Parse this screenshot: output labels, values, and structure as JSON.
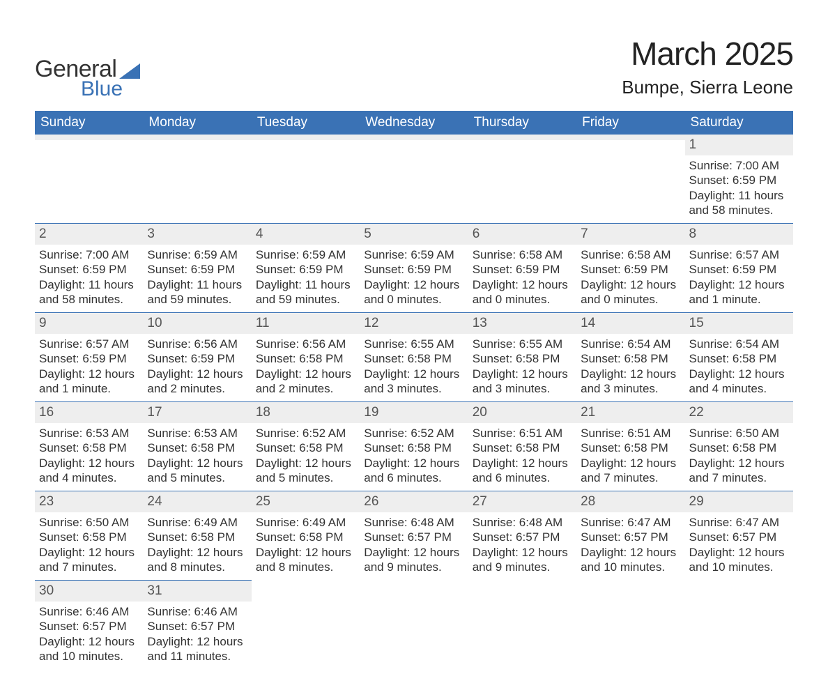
{
  "header": {
    "logo_text1": "General",
    "logo_text2": "Blue",
    "month_title": "March 2025",
    "location": "Bumpe, Sierra Leone"
  },
  "colors": {
    "header_bg": "#3a72b5",
    "header_text": "#ffffff",
    "daynum_bg": "#eeeeee",
    "row_border": "#3a72b5",
    "body_text": "#333333",
    "page_bg": "#ffffff"
  },
  "typography": {
    "month_title_fontsize": 46,
    "location_fontsize": 26,
    "dayheader_fontsize": 19,
    "daynum_fontsize": 19,
    "body_fontsize": 17
  },
  "day_headers": [
    "Sunday",
    "Monday",
    "Tuesday",
    "Wednesday",
    "Thursday",
    "Friday",
    "Saturday"
  ],
  "weeks": [
    [
      {
        "day": "",
        "sunrise": "",
        "sunset": "",
        "daylight1": "",
        "daylight2": ""
      },
      {
        "day": "",
        "sunrise": "",
        "sunset": "",
        "daylight1": "",
        "daylight2": ""
      },
      {
        "day": "",
        "sunrise": "",
        "sunset": "",
        "daylight1": "",
        "daylight2": ""
      },
      {
        "day": "",
        "sunrise": "",
        "sunset": "",
        "daylight1": "",
        "daylight2": ""
      },
      {
        "day": "",
        "sunrise": "",
        "sunset": "",
        "daylight1": "",
        "daylight2": ""
      },
      {
        "day": "",
        "sunrise": "",
        "sunset": "",
        "daylight1": "",
        "daylight2": ""
      },
      {
        "day": "1",
        "sunrise": "Sunrise: 7:00 AM",
        "sunset": "Sunset: 6:59 PM",
        "daylight1": "Daylight: 11 hours",
        "daylight2": "and 58 minutes."
      }
    ],
    [
      {
        "day": "2",
        "sunrise": "Sunrise: 7:00 AM",
        "sunset": "Sunset: 6:59 PM",
        "daylight1": "Daylight: 11 hours",
        "daylight2": "and 58 minutes."
      },
      {
        "day": "3",
        "sunrise": "Sunrise: 6:59 AM",
        "sunset": "Sunset: 6:59 PM",
        "daylight1": "Daylight: 11 hours",
        "daylight2": "and 59 minutes."
      },
      {
        "day": "4",
        "sunrise": "Sunrise: 6:59 AM",
        "sunset": "Sunset: 6:59 PM",
        "daylight1": "Daylight: 11 hours",
        "daylight2": "and 59 minutes."
      },
      {
        "day": "5",
        "sunrise": "Sunrise: 6:59 AM",
        "sunset": "Sunset: 6:59 PM",
        "daylight1": "Daylight: 12 hours",
        "daylight2": "and 0 minutes."
      },
      {
        "day": "6",
        "sunrise": "Sunrise: 6:58 AM",
        "sunset": "Sunset: 6:59 PM",
        "daylight1": "Daylight: 12 hours",
        "daylight2": "and 0 minutes."
      },
      {
        "day": "7",
        "sunrise": "Sunrise: 6:58 AM",
        "sunset": "Sunset: 6:59 PM",
        "daylight1": "Daylight: 12 hours",
        "daylight2": "and 0 minutes."
      },
      {
        "day": "8",
        "sunrise": "Sunrise: 6:57 AM",
        "sunset": "Sunset: 6:59 PM",
        "daylight1": "Daylight: 12 hours",
        "daylight2": "and 1 minute."
      }
    ],
    [
      {
        "day": "9",
        "sunrise": "Sunrise: 6:57 AM",
        "sunset": "Sunset: 6:59 PM",
        "daylight1": "Daylight: 12 hours",
        "daylight2": "and 1 minute."
      },
      {
        "day": "10",
        "sunrise": "Sunrise: 6:56 AM",
        "sunset": "Sunset: 6:59 PM",
        "daylight1": "Daylight: 12 hours",
        "daylight2": "and 2 minutes."
      },
      {
        "day": "11",
        "sunrise": "Sunrise: 6:56 AM",
        "sunset": "Sunset: 6:58 PM",
        "daylight1": "Daylight: 12 hours",
        "daylight2": "and 2 minutes."
      },
      {
        "day": "12",
        "sunrise": "Sunrise: 6:55 AM",
        "sunset": "Sunset: 6:58 PM",
        "daylight1": "Daylight: 12 hours",
        "daylight2": "and 3 minutes."
      },
      {
        "day": "13",
        "sunrise": "Sunrise: 6:55 AM",
        "sunset": "Sunset: 6:58 PM",
        "daylight1": "Daylight: 12 hours",
        "daylight2": "and 3 minutes."
      },
      {
        "day": "14",
        "sunrise": "Sunrise: 6:54 AM",
        "sunset": "Sunset: 6:58 PM",
        "daylight1": "Daylight: 12 hours",
        "daylight2": "and 3 minutes."
      },
      {
        "day": "15",
        "sunrise": "Sunrise: 6:54 AM",
        "sunset": "Sunset: 6:58 PM",
        "daylight1": "Daylight: 12 hours",
        "daylight2": "and 4 minutes."
      }
    ],
    [
      {
        "day": "16",
        "sunrise": "Sunrise: 6:53 AM",
        "sunset": "Sunset: 6:58 PM",
        "daylight1": "Daylight: 12 hours",
        "daylight2": "and 4 minutes."
      },
      {
        "day": "17",
        "sunrise": "Sunrise: 6:53 AM",
        "sunset": "Sunset: 6:58 PM",
        "daylight1": "Daylight: 12 hours",
        "daylight2": "and 5 minutes."
      },
      {
        "day": "18",
        "sunrise": "Sunrise: 6:52 AM",
        "sunset": "Sunset: 6:58 PM",
        "daylight1": "Daylight: 12 hours",
        "daylight2": "and 5 minutes."
      },
      {
        "day": "19",
        "sunrise": "Sunrise: 6:52 AM",
        "sunset": "Sunset: 6:58 PM",
        "daylight1": "Daylight: 12 hours",
        "daylight2": "and 6 minutes."
      },
      {
        "day": "20",
        "sunrise": "Sunrise: 6:51 AM",
        "sunset": "Sunset: 6:58 PM",
        "daylight1": "Daylight: 12 hours",
        "daylight2": "and 6 minutes."
      },
      {
        "day": "21",
        "sunrise": "Sunrise: 6:51 AM",
        "sunset": "Sunset: 6:58 PM",
        "daylight1": "Daylight: 12 hours",
        "daylight2": "and 7 minutes."
      },
      {
        "day": "22",
        "sunrise": "Sunrise: 6:50 AM",
        "sunset": "Sunset: 6:58 PM",
        "daylight1": "Daylight: 12 hours",
        "daylight2": "and 7 minutes."
      }
    ],
    [
      {
        "day": "23",
        "sunrise": "Sunrise: 6:50 AM",
        "sunset": "Sunset: 6:58 PM",
        "daylight1": "Daylight: 12 hours",
        "daylight2": "and 7 minutes."
      },
      {
        "day": "24",
        "sunrise": "Sunrise: 6:49 AM",
        "sunset": "Sunset: 6:58 PM",
        "daylight1": "Daylight: 12 hours",
        "daylight2": "and 8 minutes."
      },
      {
        "day": "25",
        "sunrise": "Sunrise: 6:49 AM",
        "sunset": "Sunset: 6:58 PM",
        "daylight1": "Daylight: 12 hours",
        "daylight2": "and 8 minutes."
      },
      {
        "day": "26",
        "sunrise": "Sunrise: 6:48 AM",
        "sunset": "Sunset: 6:57 PM",
        "daylight1": "Daylight: 12 hours",
        "daylight2": "and 9 minutes."
      },
      {
        "day": "27",
        "sunrise": "Sunrise: 6:48 AM",
        "sunset": "Sunset: 6:57 PM",
        "daylight1": "Daylight: 12 hours",
        "daylight2": "and 9 minutes."
      },
      {
        "day": "28",
        "sunrise": "Sunrise: 6:47 AM",
        "sunset": "Sunset: 6:57 PM",
        "daylight1": "Daylight: 12 hours",
        "daylight2": "and 10 minutes."
      },
      {
        "day": "29",
        "sunrise": "Sunrise: 6:47 AM",
        "sunset": "Sunset: 6:57 PM",
        "daylight1": "Daylight: 12 hours",
        "daylight2": "and 10 minutes."
      }
    ],
    [
      {
        "day": "30",
        "sunrise": "Sunrise: 6:46 AM",
        "sunset": "Sunset: 6:57 PM",
        "daylight1": "Daylight: 12 hours",
        "daylight2": "and 10 minutes."
      },
      {
        "day": "31",
        "sunrise": "Sunrise: 6:46 AM",
        "sunset": "Sunset: 6:57 PM",
        "daylight1": "Daylight: 12 hours",
        "daylight2": "and 11 minutes."
      },
      {
        "day": "",
        "sunrise": "",
        "sunset": "",
        "daylight1": "",
        "daylight2": ""
      },
      {
        "day": "",
        "sunrise": "",
        "sunset": "",
        "daylight1": "",
        "daylight2": ""
      },
      {
        "day": "",
        "sunrise": "",
        "sunset": "",
        "daylight1": "",
        "daylight2": ""
      },
      {
        "day": "",
        "sunrise": "",
        "sunset": "",
        "daylight1": "",
        "daylight2": ""
      },
      {
        "day": "",
        "sunrise": "",
        "sunset": "",
        "daylight1": "",
        "daylight2": ""
      }
    ]
  ]
}
